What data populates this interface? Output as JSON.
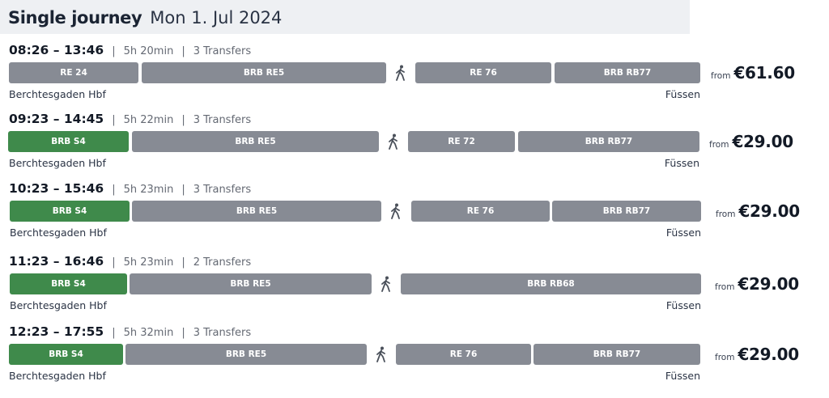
{
  "header": {
    "title": "Single journey",
    "date": "Mon 1. Jul 2024"
  },
  "journeys": [
    {
      "times": "08:26 – 13:46",
      "duration": "5h 20min",
      "transfers": "3 Transfers",
      "origin": "Berchtesgaden Hbf",
      "destination": "Füssen",
      "from_label": "from",
      "price": "€61.60",
      "legs": [
        {
          "label": "RE 24",
          "color": "grey"
        },
        {
          "label": "BRB RE5",
          "color": "grey"
        },
        {
          "label": "RE 76",
          "color": "grey"
        },
        {
          "label": "BRB RB77",
          "color": "grey"
        }
      ]
    },
    {
      "times": "09:23 – 14:45",
      "duration": "5h 22min",
      "transfers": "3 Transfers",
      "origin": "Berchtesgaden Hbf",
      "destination": "Füssen",
      "from_label": "from",
      "price": "€29.00",
      "legs": [
        {
          "label": "BRB S4",
          "color": "green"
        },
        {
          "label": "BRB RE5",
          "color": "grey"
        },
        {
          "label": "RE 72",
          "color": "grey"
        },
        {
          "label": "BRB RB77",
          "color": "grey"
        }
      ]
    },
    {
      "times": "10:23 – 15:46",
      "duration": "5h 23min",
      "transfers": "3 Transfers",
      "origin": "Berchtesgaden Hbf",
      "destination": "Füssen",
      "from_label": "from",
      "price": "€29.00",
      "legs": [
        {
          "label": "BRB S4",
          "color": "green"
        },
        {
          "label": "BRB RE5",
          "color": "grey"
        },
        {
          "label": "RE 76",
          "color": "grey"
        },
        {
          "label": "BRB RB77",
          "color": "grey"
        }
      ]
    },
    {
      "times": "11:23 – 16:46",
      "duration": "5h 23min",
      "transfers": "2 Transfers",
      "origin": "Berchtesgaden Hbf",
      "destination": "Füssen",
      "from_label": "from",
      "price": "€29.00",
      "legs": [
        {
          "label": "BRB S4",
          "color": "green"
        },
        {
          "label": "BRB RE5",
          "color": "grey"
        },
        {
          "label": "BRB RB68",
          "color": "grey"
        }
      ]
    },
    {
      "times": "12:23 – 17:55",
      "duration": "5h 32min",
      "transfers": "3 Transfers",
      "origin": "Berchtesgaden Hbf",
      "destination": "Füssen",
      "from_label": "from",
      "price": "€29.00",
      "legs": [
        {
          "label": "BRB S4",
          "color": "green"
        },
        {
          "label": "BRB RE5",
          "color": "grey"
        },
        {
          "label": "RE 76",
          "color": "grey"
        },
        {
          "label": "BRB RB77",
          "color": "grey"
        }
      ]
    }
  ]
}
